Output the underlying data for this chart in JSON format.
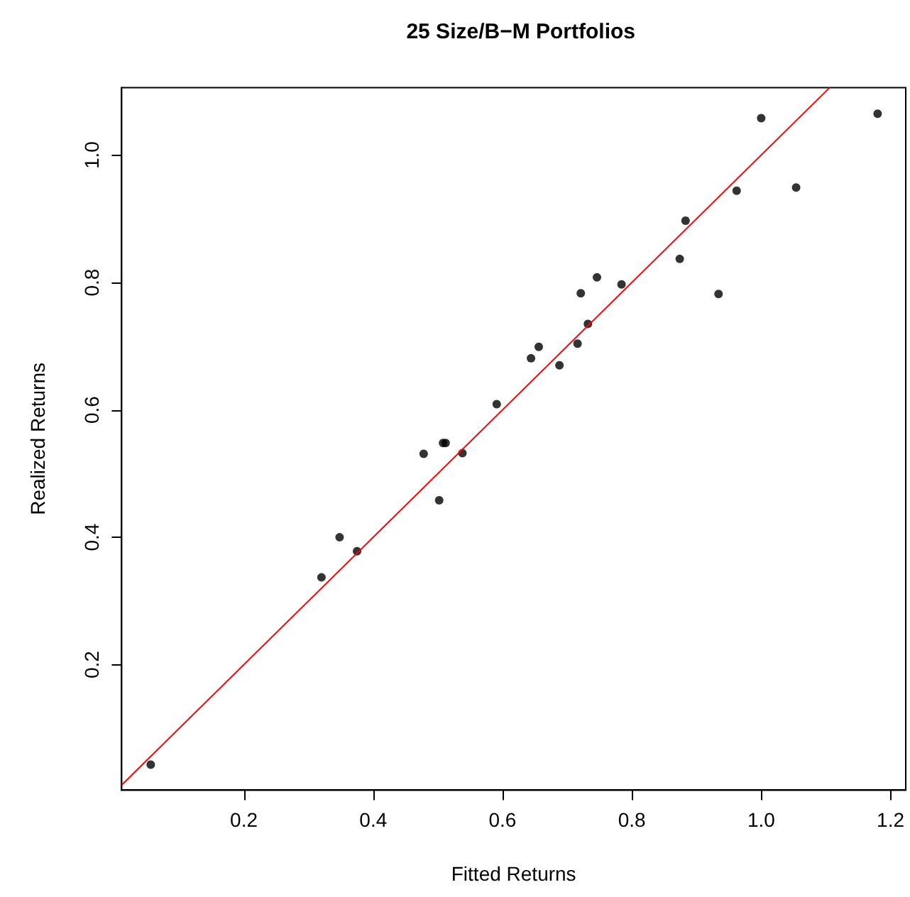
{
  "chart_data": {
    "type": "scatter",
    "title": "25 Size/B−M Portfolios",
    "xlabel": "Fitted Returns",
    "ylabel": "Realized Returns",
    "marker": "circle",
    "xlim": [
      0.011,
      1.2235
    ],
    "ylim": [
      0.003,
      1.106
    ],
    "xticks": [
      0.2,
      0.4,
      0.6,
      0.8,
      {
        "value": 1,
        "label": "1.0"
      },
      1.2
    ],
    "yticks": [
      0.2,
      0.4,
      0.6,
      0.8,
      {
        "value": 1,
        "label": "1.0"
      }
    ],
    "grid": false,
    "series": [
      {
        "color": "#000000",
        "x": [
          0.056,
          0.32,
          0.348,
          0.375,
          0.478,
          0.502,
          0.508,
          0.512,
          0.538,
          0.591,
          0.644,
          0.656,
          0.688,
          0.716,
          0.721,
          0.732,
          0.746,
          0.784,
          0.874,
          0.883,
          0.934,
          0.962,
          1.0,
          1.054,
          1.18
        ],
        "values": [
          0.043,
          0.337,
          0.4,
          0.378,
          0.531,
          0.458,
          0.548,
          0.548,
          0.532,
          0.609,
          0.681,
          0.699,
          0.67,
          0.704,
          0.783,
          0.735,
          0.808,
          0.797,
          0.837,
          0.897,
          0.782,
          0.944,
          1.058,
          0.949,
          1.065
        ]
      },
      {
        "type": "line",
        "color": "#ff0000",
        "marker": "none",
        "x": [
          0.011,
          1.106
        ],
        "values": [
          0.011,
          1.106
        ]
      }
    ]
  }
}
